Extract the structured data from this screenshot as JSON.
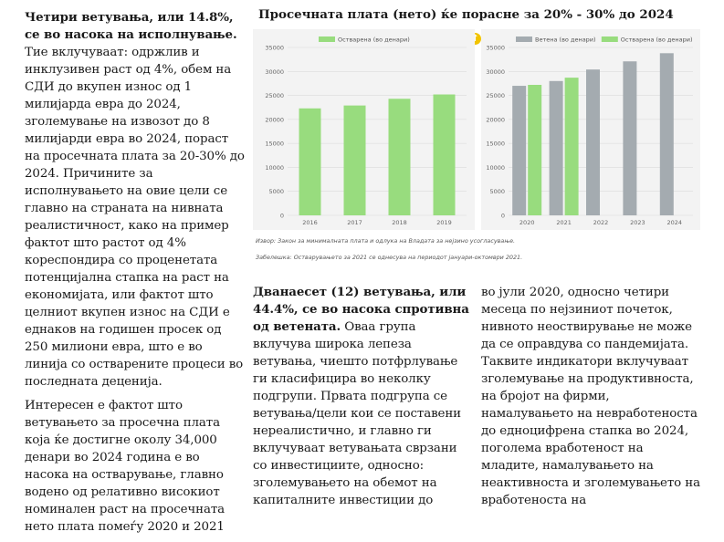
{
  "left_column": {
    "p1_bold": "Четири ветувања, или 14.8%, се во насока на исполнување.",
    "p1_text": " Тие вклучуваат: одржлив и инклузивен раст од 4%, обем на СДИ до вкупен износ од 1 милијарда евра до 2024, зголемување на извозот до 8 милијарди евра во 2024, пораст на просечната плата за 20-30% до 2024. Причините за исполнувањето на овие цели се главно на страната на нивната реалистичност, како на пример фактот што растот од 4% кореспондира со проценетата потенцијална стапка на раст на економијата, или фактот што целниот вкупен износ на СДИ е еднаков на годишен просек од 250 милиони евра, што е во линија со остварените процеси во последната деценија.",
    "p2_text": "Интересен е фактот што ветувањето за просечна плата која ќе достигне околу 34,000 денари во 2024 година е во насока на остварување, главно водено од релативно високиот номинален раст на просечната нето плата помеѓу 2020 и 2021"
  },
  "figure": {
    "title": "Просечната плата (нето) ќе порасне за 20% - 30% до 2024",
    "source_note": "Извор: Закон за минималната плата и одлука на Владата за нејзино усогласување.",
    "remark_note": "Забелешка: Остварувањето за 2021 се однесува на периодот јануари-октомври 2021."
  },
  "chart_data": [
    {
      "type": "bar",
      "categories": [
        "2016",
        "2017",
        "2018",
        "2019"
      ],
      "series": [
        {
          "name": "Остварена (во денари)",
          "values": [
            22300,
            22900,
            24300,
            25200
          ],
          "color": "#98dc7e"
        }
      ],
      "ylim": [
        0,
        35000
      ],
      "yticks": [
        0,
        5000,
        10000,
        15000,
        20000,
        25000,
        30000,
        35000
      ],
      "legend": "top",
      "grid": true
    },
    {
      "type": "bar",
      "categories": [
        "2020",
        "2021",
        "2022",
        "2023",
        "2024"
      ],
      "series": [
        {
          "name": "Ветена (во денари)",
          "values": [
            27000,
            28000,
            30400,
            32100,
            33800
          ],
          "color": "#a4abb0"
        },
        {
          "name": "Остварена (во денари)",
          "values": [
            27200,
            28700,
            null,
            null,
            null
          ],
          "color": "#98dc7e"
        }
      ],
      "ylim": [
        0,
        35000
      ],
      "yticks": [
        0,
        5000,
        10000,
        15000,
        20000,
        25000,
        30000,
        35000
      ],
      "legend": "top",
      "grid": true
    }
  ],
  "middle_column": {
    "p_bold": "Дванаесет (12) ветувања, или 44.4%, се во насока спротивна од ветената.",
    "p_text": " Оваа група вклучува широка лепеза ветувања, чиешто потфрлување ги класифицира во неколку подгрупи. Првата подгрупа се ветувања/цели кои се поставени нереалистично, и главно ги вклучуваат ветувањата сврзани со инвестициите, односно: зголемувањето на обемот на капиталните инвестиции до"
  },
  "right_column": {
    "p_text": "во јули 2020, односно четири месеца по нејзиниот почеток, нивното неоствирување не може да се оправдува со пандемијата. Таквите индикатори вклучуваат зголемување на продуктивноста, на бројот на фирми, намалувањето на невработеноста до едноцифрена стапка во 2024, поголема вработеност на младите, намалувањето на неактивноста и зголемувањето на вработеноста на"
  },
  "icons": {
    "info": "light-bulb-icon"
  }
}
